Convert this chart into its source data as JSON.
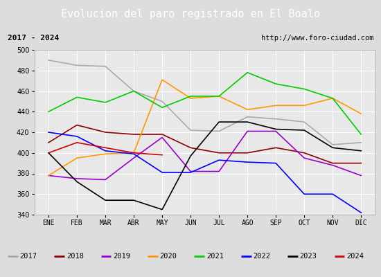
{
  "title": "Evolucion del paro registrado en El Boalo",
  "subtitle_left": "2017 - 2024",
  "subtitle_right": "http://www.foro-ciudad.com",
  "months": [
    "ENE",
    "FEB",
    "MAR",
    "ABR",
    "MAY",
    "JUN",
    "JUL",
    "AGO",
    "SEP",
    "OCT",
    "NOV",
    "DIC"
  ],
  "ylim": [
    340,
    500
  ],
  "series": {
    "2017": {
      "color": "#aaaaaa",
      "values": [
        490,
        485,
        484,
        460,
        450,
        422,
        421,
        435,
        433,
        430,
        408,
        410
      ]
    },
    "2018": {
      "color": "#8b0000",
      "values": [
        410,
        427,
        420,
        418,
        418,
        405,
        400,
        400,
        405,
        400,
        390,
        390
      ]
    },
    "2019": {
      "color": "#9900cc",
      "values": [
        378,
        375,
        374,
        395,
        415,
        382,
        382,
        421,
        421,
        395,
        388,
        378
      ]
    },
    "2020": {
      "color": "#ff9900",
      "values": [
        378,
        395,
        399,
        400,
        471,
        453,
        455,
        442,
        446,
        446,
        453,
        438
      ]
    },
    "2021": {
      "color": "#00cc00",
      "values": [
        440,
        454,
        449,
        460,
        444,
        455,
        455,
        478,
        467,
        462,
        453,
        418
      ]
    },
    "2022": {
      "color": "#0000ff",
      "values": [
        420,
        416,
        402,
        399,
        381,
        381,
        393,
        391,
        390,
        360,
        360,
        342
      ]
    },
    "2023": {
      "color": "#000000",
      "values": [
        400,
        372,
        354,
        354,
        345,
        397,
        430,
        430,
        423,
        422,
        405,
        402
      ]
    },
    "2024": {
      "color": "#cc0000",
      "values": [
        400,
        410,
        405,
        400,
        398,
        null,
        null,
        null,
        null,
        null,
        null,
        null
      ]
    }
  },
  "background_color": "#dddddd",
  "plot_bg": "#e8e8e8",
  "title_bg": "#4472c4",
  "title_color": "white",
  "grid_color": "white",
  "box_bg": "#e0e0e0",
  "title_fontsize": 11,
  "tick_fontsize": 7,
  "legend_fontsize": 7.5
}
